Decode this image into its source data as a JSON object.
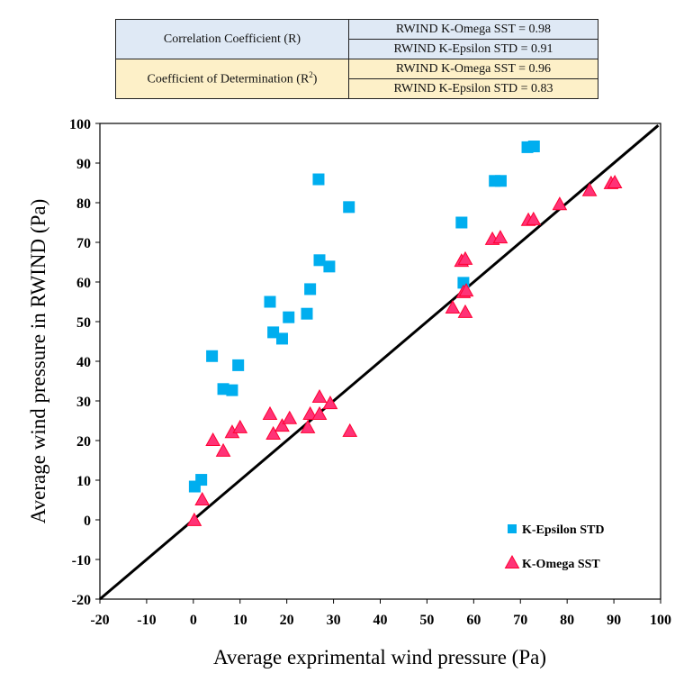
{
  "stats_table": {
    "rows": [
      {
        "label": "Correlation Coefficient (R)",
        "values": [
          "RWIND K-Omega SST  = 0.98",
          "RWIND K-Epsilon STD  = 0.91"
        ]
      },
      {
        "label": "Coefficient of Determination (R",
        "label_sup": "2",
        "label_end": ")",
        "values": [
          "RWIND K-Omega SST  = 0.96",
          "RWIND K-Epsilon STD  = 0.83"
        ]
      }
    ],
    "colors": {
      "row1": "#dfe9f5",
      "row2": "#fdf0c8"
    }
  },
  "chart_data": {
    "type": "scatter",
    "xlabel": "Average exprimental wind pressure (Pa)",
    "ylabel": "Average wind pressure in RWIND (Pa)",
    "xlim": [
      -20,
      100
    ],
    "ylim": [
      -20,
      100
    ],
    "xticks": [
      -20,
      -10,
      0,
      10,
      20,
      30,
      40,
      50,
      60,
      70,
      80,
      90,
      100
    ],
    "yticks": [
      -20,
      -10,
      0,
      10,
      20,
      30,
      40,
      50,
      60,
      70,
      80,
      90,
      100
    ],
    "grid": false,
    "legend_placement": "bottom-right",
    "reference_line": {
      "type": "y=x",
      "color": "#000000"
    },
    "series": [
      {
        "name": "K-Epsilon STD",
        "marker": "square",
        "color": "#00aeef",
        "points": [
          [
            0.3,
            8.4
          ],
          [
            1.7,
            10.1
          ],
          [
            4.0,
            41.3
          ],
          [
            6.4,
            33.0
          ],
          [
            8.3,
            32.7
          ],
          [
            9.6,
            39.0
          ],
          [
            16.4,
            55.0
          ],
          [
            17.1,
            47.3
          ],
          [
            19.0,
            45.7
          ],
          [
            20.4,
            51.1
          ],
          [
            24.3,
            52.0
          ],
          [
            25.0,
            58.2
          ],
          [
            26.8,
            85.9
          ],
          [
            27.0,
            65.5
          ],
          [
            29.1,
            63.9
          ],
          [
            33.3,
            78.9
          ],
          [
            57.4,
            75.0
          ],
          [
            57.8,
            59.8
          ],
          [
            64.5,
            85.5
          ],
          [
            65.8,
            85.5
          ],
          [
            71.5,
            94.0
          ],
          [
            72.9,
            94.2
          ]
        ]
      },
      {
        "name": "K-Omega SST",
        "marker": "triangle",
        "color": "#ff3377",
        "points": [
          [
            0.2,
            -0.2
          ],
          [
            1.9,
            5.0
          ],
          [
            4.2,
            20.0
          ],
          [
            6.4,
            17.3
          ],
          [
            8.3,
            22.0
          ],
          [
            10.0,
            23.2
          ],
          [
            16.4,
            26.6
          ],
          [
            17.1,
            21.6
          ],
          [
            19.0,
            23.6
          ],
          [
            20.6,
            25.5
          ],
          [
            24.5,
            23.2
          ],
          [
            25.0,
            26.6
          ],
          [
            27.0,
            26.6
          ],
          [
            27.0,
            30.9
          ],
          [
            29.3,
            29.3
          ],
          [
            33.5,
            22.3
          ],
          [
            55.5,
            53.4
          ],
          [
            57.8,
            57.3
          ],
          [
            58.4,
            57.7
          ],
          [
            58.2,
            52.3
          ],
          [
            57.4,
            65.2
          ],
          [
            58.2,
            65.7
          ],
          [
            64.0,
            70.7
          ],
          [
            65.7,
            71.1
          ],
          [
            71.7,
            75.5
          ],
          [
            72.8,
            75.7
          ],
          [
            78.4,
            79.5
          ],
          [
            84.8,
            83.0
          ],
          [
            89.4,
            84.8
          ],
          [
            90.2,
            85.0
          ]
        ]
      }
    ]
  }
}
